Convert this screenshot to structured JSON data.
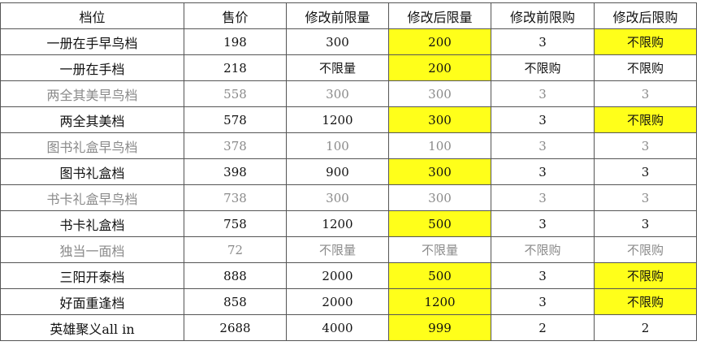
{
  "table": {
    "headers": [
      "档位",
      "售价",
      "修改前限量",
      "修改后限量",
      "修改前限购",
      "修改后限购"
    ],
    "rows": [
      {
        "cells": [
          "一册在手早鸟档",
          "198",
          "300",
          "200",
          "3",
          "不限购"
        ],
        "dim": false,
        "highlight": [
          3,
          5
        ]
      },
      {
        "cells": [
          "一册在手档",
          "218",
          "不限量",
          "200",
          "不限购",
          "不限购"
        ],
        "dim": false,
        "highlight": [
          3
        ]
      },
      {
        "cells": [
          "两全其美早鸟档",
          "558",
          "300",
          "300",
          "3",
          "3"
        ],
        "dim": true,
        "highlight": []
      },
      {
        "cells": [
          "两全其美档",
          "578",
          "1200",
          "300",
          "3",
          "不限购"
        ],
        "dim": false,
        "highlight": [
          3,
          5
        ]
      },
      {
        "cells": [
          "图书礼盒早鸟档",
          "378",
          "100",
          "100",
          "3",
          "3"
        ],
        "dim": true,
        "highlight": []
      },
      {
        "cells": [
          "图书礼盒档",
          "398",
          "900",
          "300",
          "3",
          "3"
        ],
        "dim": false,
        "highlight": [
          3
        ]
      },
      {
        "cells": [
          "书卡礼盒早鸟档",
          "738",
          "300",
          "300",
          "3",
          "3"
        ],
        "dim": true,
        "highlight": []
      },
      {
        "cells": [
          "书卡礼盒档",
          "758",
          "1200",
          "500",
          "3",
          "3"
        ],
        "dim": false,
        "highlight": [
          3
        ]
      },
      {
        "cells": [
          "独当一面档",
          "72",
          "不限量",
          "不限量",
          "不限购",
          "不限购"
        ],
        "dim": true,
        "highlight": []
      },
      {
        "cells": [
          "三阳开泰档",
          "888",
          "2000",
          "500",
          "3",
          "不限购"
        ],
        "dim": false,
        "highlight": [
          3,
          5
        ]
      },
      {
        "cells": [
          "好面重逢档",
          "858",
          "2000",
          "1200",
          "3",
          "不限购"
        ],
        "dim": false,
        "highlight": [
          3,
          5
        ]
      },
      {
        "cells": [
          "英雄聚义all in",
          "2688",
          "4000",
          "999",
          "2",
          "2"
        ],
        "dim": false,
        "highlight": [
          3
        ]
      }
    ]
  },
  "colors": {
    "highlight": "#ffff1a",
    "dim_text": "#8a8a8a"
  }
}
